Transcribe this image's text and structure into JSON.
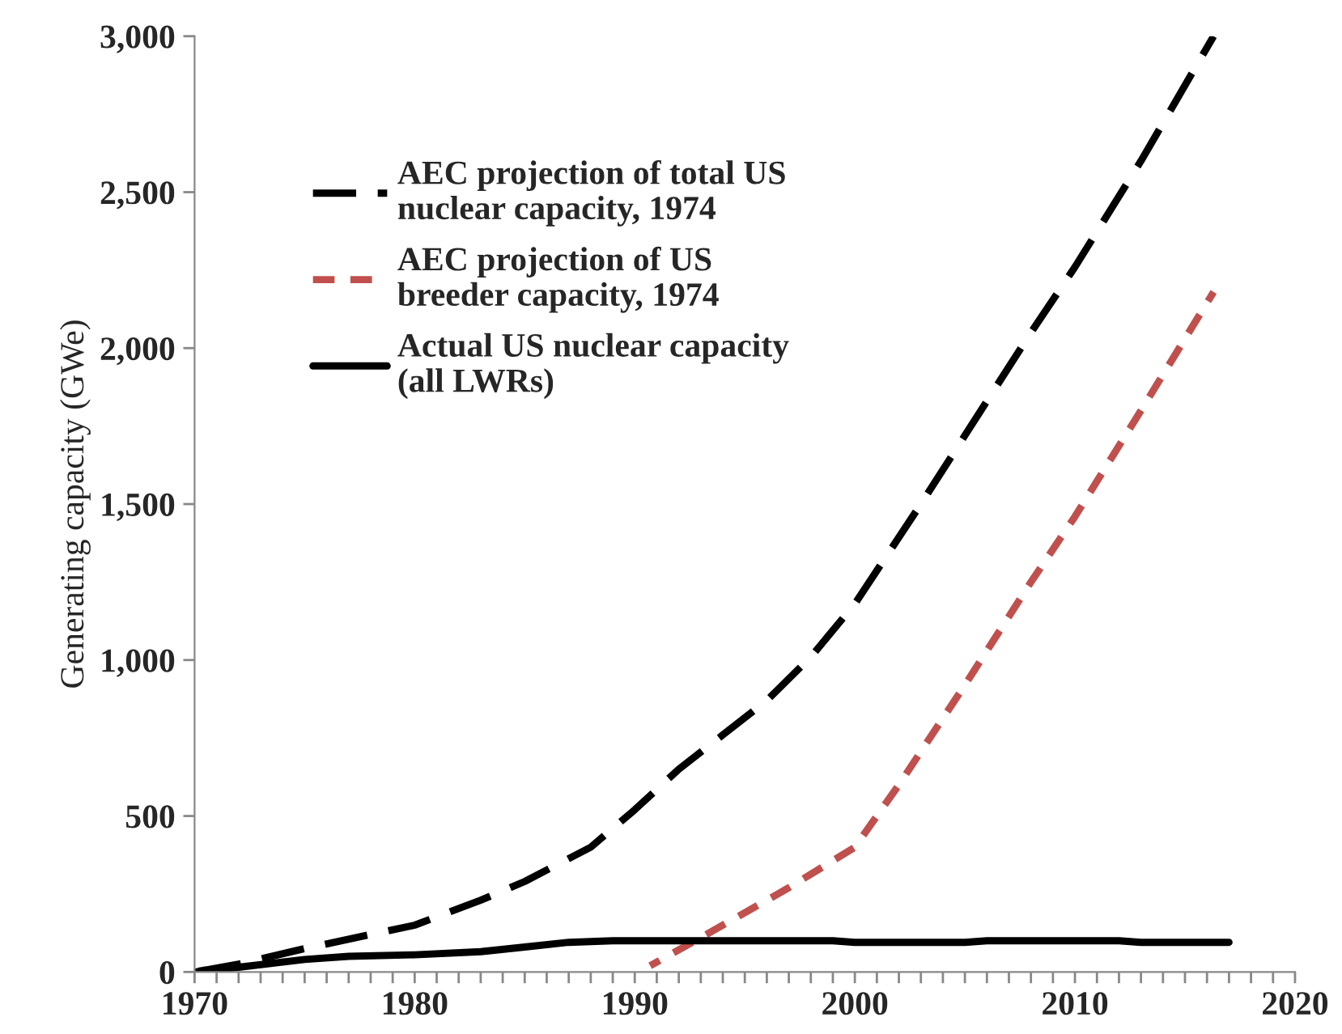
{
  "chart_data": {
    "type": "line",
    "ylabel": "Generating capacity (GWe)",
    "xlim": [
      1970,
      2020
    ],
    "xticks": [
      1970,
      {
        "value": 1971,
        "label": null
      },
      {
        "value": 1972,
        "label": null
      },
      {
        "value": 1973,
        "label": null
      },
      {
        "value": 1974,
        "label": null
      },
      {
        "value": 1975,
        "label": null
      },
      {
        "value": 1976,
        "label": null
      },
      {
        "value": 1977,
        "label": null
      },
      {
        "value": 1978,
        "label": null
      },
      {
        "value": 1979,
        "label": null
      },
      1980,
      {
        "value": 1981,
        "label": null
      },
      {
        "value": 1982,
        "label": null
      },
      {
        "value": 1983,
        "label": null
      },
      {
        "value": 1984,
        "label": null
      },
      {
        "value": 1985,
        "label": null
      },
      {
        "value": 1986,
        "label": null
      },
      {
        "value": 1987,
        "label": null
      },
      {
        "value": 1988,
        "label": null
      },
      {
        "value": 1989,
        "label": null
      },
      1990,
      {
        "value": 1991,
        "label": null
      },
      {
        "value": 1992,
        "label": null
      },
      {
        "value": 1993,
        "label": null
      },
      {
        "value": 1994,
        "label": null
      },
      {
        "value": 1995,
        "label": null
      },
      {
        "value": 1996,
        "label": null
      },
      {
        "value": 1997,
        "label": null
      },
      {
        "value": 1998,
        "label": null
      },
      {
        "value": 1999,
        "label": null
      },
      2000,
      {
        "value": 2001,
        "label": null
      },
      {
        "value": 2002,
        "label": null
      },
      {
        "value": 2003,
        "label": null
      },
      {
        "value": 2004,
        "label": null
      },
      {
        "value": 2005,
        "label": null
      },
      {
        "value": 2006,
        "label": null
      },
      {
        "value": 2007,
        "label": null
      },
      {
        "value": 2008,
        "label": null
      },
      {
        "value": 2009,
        "label": null
      },
      2010,
      {
        "value": 2011,
        "label": null
      },
      {
        "value": 2012,
        "label": null
      },
      {
        "value": 2013,
        "label": null
      },
      {
        "value": 2014,
        "label": null
      },
      {
        "value": 2015,
        "label": null
      },
      {
        "value": 2016,
        "label": null
      },
      {
        "value": 2017,
        "label": null
      },
      {
        "value": 2018,
        "label": null
      },
      {
        "value": 2019,
        "label": null
      },
      2020
    ],
    "ylim": [
      0,
      3000
    ],
    "yticks": [
      {
        "value": 0,
        "label": "0"
      },
      {
        "value": 500,
        "label": "500"
      },
      {
        "value": 1000,
        "label": "1,000"
      },
      {
        "value": 1500,
        "label": "1,500"
      },
      {
        "value": 2000,
        "label": "2,000"
      },
      {
        "value": 2500,
        "label": "2,500"
      },
      {
        "value": 3000,
        "label": "3,000"
      }
    ],
    "grid": false,
    "legend": "top left",
    "series": [
      {
        "name": "AEC projection of total US nuclear capacity, 1974",
        "color": "#000000",
        "line_style": "dashed",
        "x": [
          1970,
          1972,
          1975,
          1978,
          1980,
          1983,
          1985,
          1988,
          1990,
          1992,
          1994,
          1996,
          1998,
          2000,
          2003,
          2005,
          2008,
          2010,
          2013,
          2016.3
        ],
        "values": [
          0,
          25,
          75,
          120,
          150,
          230,
          290,
          400,
          520,
          650,
          760,
          870,
          1010,
          1180,
          1500,
          1720,
          2050,
          2260,
          2600,
          3000
        ]
      },
      {
        "name": "AEC projection of US breeder capacity, 1974",
        "color": "#c0504d",
        "line_style": "dashed",
        "x": [
          1990.7,
          1993,
          1995,
          1997,
          2000,
          2002,
          2005,
          2008,
          2010,
          2013,
          2016.3
        ],
        "values": [
          20,
          110,
          190,
          270,
          400,
          600,
          920,
          1250,
          1460,
          1800,
          2180
        ]
      },
      {
        "name": "Actual US nuclear capacity (all LWRs)",
        "color": "#000000",
        "line_style": "solid",
        "x": [
          1970,
          1972,
          1975,
          1977,
          1980,
          1983,
          1985,
          1987,
          1989,
          1999,
          2000,
          2005,
          2006,
          2012,
          2013,
          2017
        ],
        "values": [
          0,
          15,
          40,
          50,
          55,
          65,
          80,
          95,
          100,
          100,
          95,
          95,
          100,
          100,
          95,
          95
        ]
      }
    ]
  }
}
